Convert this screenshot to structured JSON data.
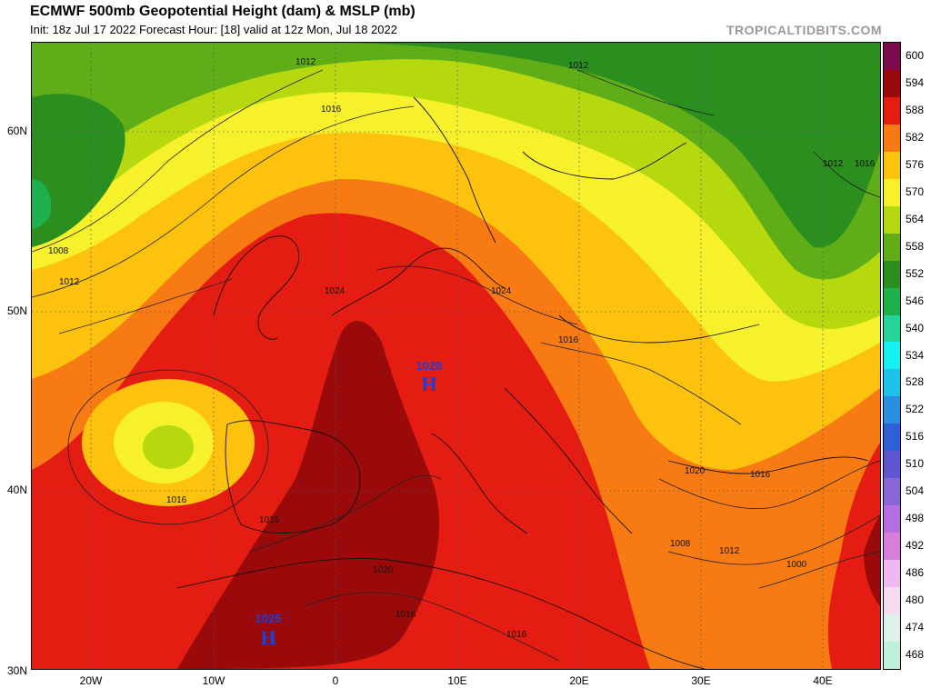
{
  "header": {
    "title": "ECMWF 500mb Geopotential Height (dam) & MSLP (mb)",
    "subtitle": "Init: 18z Jul 17 2022   Forecast Hour: [18]   valid at 12z Mon, Jul 18 2022",
    "brand": "TROPICALTIDBITS.COM"
  },
  "map": {
    "lat_labels": [
      "60N",
      "50N",
      "40N",
      "30N"
    ],
    "lon_labels": [
      "20W",
      "10W",
      "0",
      "10E",
      "20E",
      "30E",
      "40E"
    ],
    "pressure_centers": [
      {
        "type": "H",
        "value": "1025",
        "color": "#1f3fd6"
      },
      {
        "type": "H",
        "value": "1028",
        "color": "#1f3fd6"
      }
    ],
    "isobar_labels": [
      "1012",
      "1016",
      "1008",
      "1012",
      "1012",
      "1016",
      "1016",
      "1020",
      "1024",
      "1024",
      "1016",
      "1016",
      "1016",
      "1016",
      "1020",
      "1016",
      "1008",
      "1012",
      "1000",
      "1012"
    ]
  },
  "colorbar": {
    "levels": [
      {
        "label": "600",
        "color": "#7a0a4a"
      },
      {
        "label": "594",
        "color": "#9a0a0a"
      },
      {
        "label": "588",
        "color": "#e51c12"
      },
      {
        "label": "582",
        "color": "#f77a12"
      },
      {
        "label": "576",
        "color": "#fcc20e"
      },
      {
        "label": "570",
        "color": "#f6f12a"
      },
      {
        "label": "564",
        "color": "#b5d80f"
      },
      {
        "label": "558",
        "color": "#5fae17"
      },
      {
        "label": "552",
        "color": "#2a8f1e"
      },
      {
        "label": "546",
        "color": "#1fb04e"
      },
      {
        "label": "540",
        "color": "#24d49a"
      },
      {
        "label": "534",
        "color": "#15f0f0"
      },
      {
        "label": "528",
        "color": "#1ec2ea"
      },
      {
        "label": "522",
        "color": "#2a8fe0"
      },
      {
        "label": "516",
        "color": "#2f5fd6"
      },
      {
        "label": "510",
        "color": "#5d55d2"
      },
      {
        "label": "504",
        "color": "#8a67d9"
      },
      {
        "label": "498",
        "color": "#b56fe0"
      },
      {
        "label": "492",
        "color": "#d77fdc"
      },
      {
        "label": "486",
        "color": "#f0b7f0"
      },
      {
        "label": "480",
        "color": "#f5dcef"
      },
      {
        "label": "474",
        "color": "#dff2ea"
      },
      {
        "label": "468",
        "color": "#bff0d8"
      }
    ]
  }
}
